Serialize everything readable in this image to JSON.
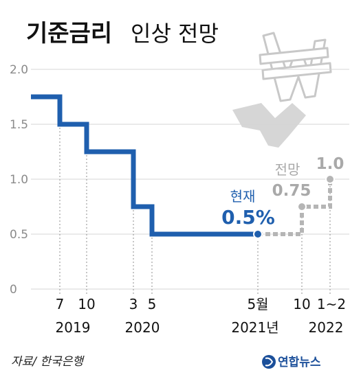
{
  "title": {
    "bold": "기준금리",
    "rest": "인상 전망"
  },
  "source": "자료/ 한국은행",
  "logo": "연합뉴스",
  "colors": {
    "actual": "#1f5fae",
    "forecast": "#b5b5b5",
    "grid": "#d4d4d4",
    "title": "#111111"
  },
  "annotations": {
    "current_label": "현재",
    "current_value": "0.5%",
    "forecast_label": "전망",
    "forecast_value_1": "0.75",
    "forecast_value_2": "1.0"
  },
  "chart_data": {
    "type": "line",
    "step": true,
    "title": "기준금리 인상 전망",
    "ylim": [
      0,
      2.0
    ],
    "yticks": [
      "2.0",
      "1.5",
      "1.0",
      "0.5",
      "0"
    ],
    "grid": true,
    "xticks": [
      "7",
      "10",
      "3",
      "5",
      "5월",
      "10",
      "1~2"
    ],
    "year_labels": [
      "2019",
      "2020",
      "2021년",
      "2022"
    ],
    "series": [
      {
        "style": "solid",
        "points": [
          {
            "x": "2019.7 이전",
            "y": 1.75
          },
          {
            "x": "2019.7",
            "y": 1.5
          },
          {
            "x": "2019.10",
            "y": 1.25
          },
          {
            "x": "2020.3",
            "y": 0.75
          },
          {
            "x": "2020.5",
            "y": 0.5
          },
          {
            "x": "2021.5",
            "y": 0.5
          }
        ]
      },
      {
        "style": "dashed",
        "points": [
          {
            "x": "2021.5",
            "y": 0.5
          },
          {
            "x": "2021.10",
            "y": 0.75
          },
          {
            "x": "2022.1~2",
            "y": 1.0
          }
        ]
      }
    ]
  }
}
